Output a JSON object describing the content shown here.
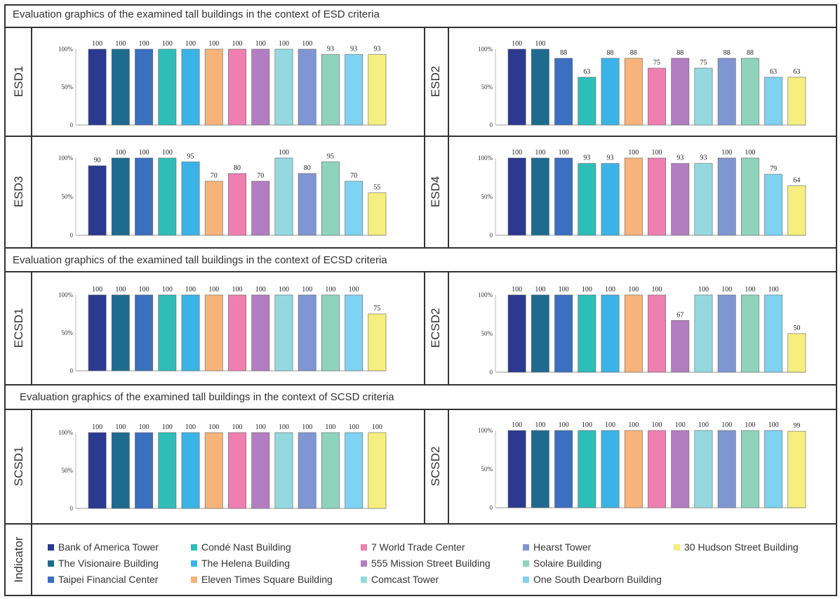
{
  "section_titles": [
    "Evaluation graphics of the examined tall buildings in the context of ESD criteria",
    "Evaluation graphics of the examined tall buildings in the context of ECSD criteria",
    "Evaluation graphics of the examined tall buildings in the context of SCSD criteria"
  ],
  "legend": {
    "title": "Indicator",
    "items": [
      {
        "label": "Bank of America Tower",
        "color": "#2b3990"
      },
      {
        "label": "The Visionaire Building",
        "color": "#1f6b8f"
      },
      {
        "label": "Taipei Financial Center",
        "color": "#3b6fc0"
      },
      {
        "label": "Condé Nast Building",
        "color": "#2ebdb8"
      },
      {
        "label": "The Helena Building",
        "color": "#3ab4e6"
      },
      {
        "label": "Eleven Times Square Building",
        "color": "#f7b37a"
      },
      {
        "label": "7 World Trade Center",
        "color": "#ef7fb1"
      },
      {
        "label": "555 Mission Street Building",
        "color": "#b27dc1"
      },
      {
        "label": "Comcast Tower",
        "color": "#94d9e0"
      },
      {
        "label": "Hearst Tower",
        "color": "#7f96d2"
      },
      {
        "label": "Solaire Building",
        "color": "#8fd3bd"
      },
      {
        "label": "One South Dearborn Building",
        "color": "#7fd2f2"
      },
      {
        "label": "30 Hudson Street Building",
        "color": "#f6ee7e"
      }
    ]
  },
  "chart_data": [
    {
      "type": "bar",
      "ylabel": "ESD1",
      "yticks": [
        "0",
        "50%",
        "100%"
      ],
      "ylim": [
        0,
        100
      ],
      "values": [
        100,
        100,
        100,
        100,
        100,
        100,
        100,
        100,
        100,
        100,
        93,
        93,
        93
      ]
    },
    {
      "type": "bar",
      "ylabel": "ESD2",
      "yticks": [
        "0",
        "50%",
        "100%"
      ],
      "ylim": [
        0,
        100
      ],
      "values": [
        100,
        100,
        88,
        63,
        88,
        88,
        75,
        88,
        75,
        88,
        88,
        63,
        63
      ]
    },
    {
      "type": "bar",
      "ylabel": "ESD3",
      "yticks": [
        "0",
        "50%",
        "100%"
      ],
      "ylim": [
        0,
        100
      ],
      "values": [
        90,
        100,
        100,
        100,
        95,
        70,
        80,
        70,
        100,
        80,
        95,
        70,
        55
      ]
    },
    {
      "type": "bar",
      "ylabel": "ESD4",
      "yticks": [
        "0",
        "50%",
        "100%"
      ],
      "ylim": [
        0,
        100
      ],
      "values": [
        100,
        100,
        100,
        93,
        93,
        100,
        100,
        93,
        93,
        100,
        100,
        79,
        64
      ]
    },
    {
      "type": "bar",
      "ylabel": "ECSD1",
      "yticks": [
        "0",
        "50%",
        "100%"
      ],
      "ylim": [
        0,
        100
      ],
      "values": [
        100,
        100,
        100,
        100,
        100,
        100,
        100,
        100,
        100,
        100,
        100,
        100,
        75
      ]
    },
    {
      "type": "bar",
      "ylabel": "ECSD2",
      "yticks": [
        "0",
        "50%",
        "100%"
      ],
      "ylim": [
        0,
        100
      ],
      "values": [
        100,
        100,
        100,
        100,
        100,
        100,
        100,
        67,
        100,
        100,
        100,
        100,
        50
      ]
    },
    {
      "type": "bar",
      "ylabel": "SCSD1",
      "yticks": [
        "0",
        "50%",
        "100%"
      ],
      "ylim": [
        0,
        100
      ],
      "values": [
        100,
        100,
        100,
        100,
        100,
        100,
        100,
        100,
        100,
        100,
        100,
        100,
        100
      ]
    },
    {
      "type": "bar",
      "ylabel": "SCSD2",
      "yticks": [
        "0",
        "50%",
        "100%"
      ],
      "ylim": [
        0,
        100
      ],
      "values": [
        100,
        100,
        100,
        100,
        100,
        100,
        100,
        100,
        100,
        100,
        100,
        100,
        99
      ]
    }
  ]
}
